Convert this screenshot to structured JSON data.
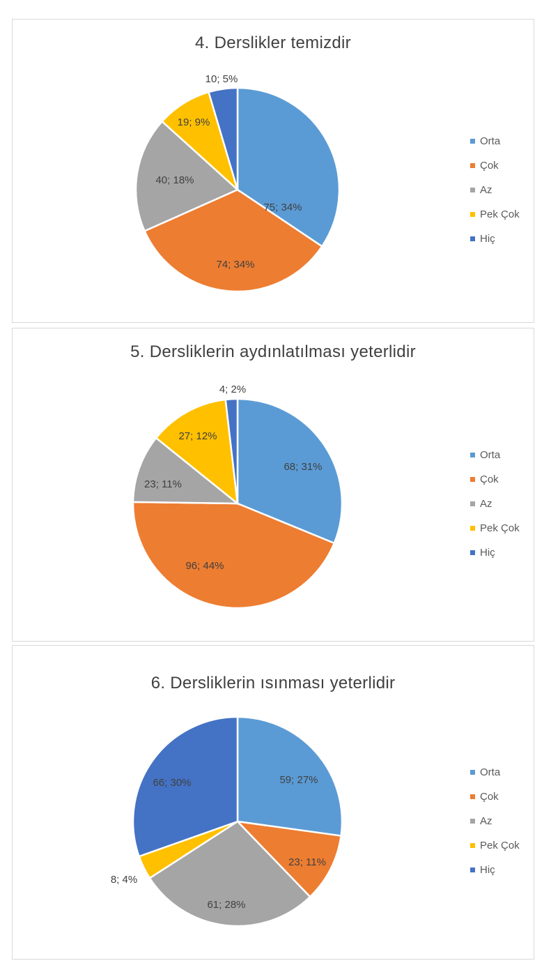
{
  "chart_data": [
    {
      "type": "pie",
      "title": "4. Derslikler temizdir",
      "categories": [
        "Orta",
        "Çok",
        "Az",
        "Pek Çok",
        "Hiç"
      ],
      "values": [
        75,
        74,
        40,
        19,
        10
      ],
      "labels": [
        "75; 34%",
        "74; 34%",
        "40; 18%",
        "19; 9%",
        "10; 5%"
      ],
      "colors": [
        "#5B9BD5",
        "#ED7D31",
        "#A5A5A5",
        "#FFC000",
        "#4472C4"
      ],
      "legend_position": "right"
    },
    {
      "type": "pie",
      "title": "5. Dersliklerin aydınlatılması yeterlidir",
      "categories": [
        "Orta",
        "Çok",
        "Az",
        "Pek Çok",
        "Hiç"
      ],
      "values": [
        68,
        96,
        23,
        27,
        4
      ],
      "labels": [
        "68; 31%",
        "96; 44%",
        "23; 11%",
        "27; 12%",
        "4; 2%"
      ],
      "colors": [
        "#5B9BD5",
        "#ED7D31",
        "#A5A5A5",
        "#FFC000",
        "#4472C4"
      ],
      "legend_position": "right"
    },
    {
      "type": "pie",
      "title": "6. Dersliklerin ısınması yeterlidir",
      "categories": [
        "Orta",
        "Çok",
        "Az",
        "Pek Çok",
        "Hiç"
      ],
      "values": [
        59,
        23,
        61,
        8,
        66
      ],
      "labels": [
        "59; 27%",
        "23; 11%",
        "61; 28%",
        "8; 4%",
        "66; 30%"
      ],
      "colors": [
        "#5B9BD5",
        "#ED7D31",
        "#A5A5A5",
        "#FFC000",
        "#4472C4"
      ],
      "legend_position": "right"
    }
  ]
}
